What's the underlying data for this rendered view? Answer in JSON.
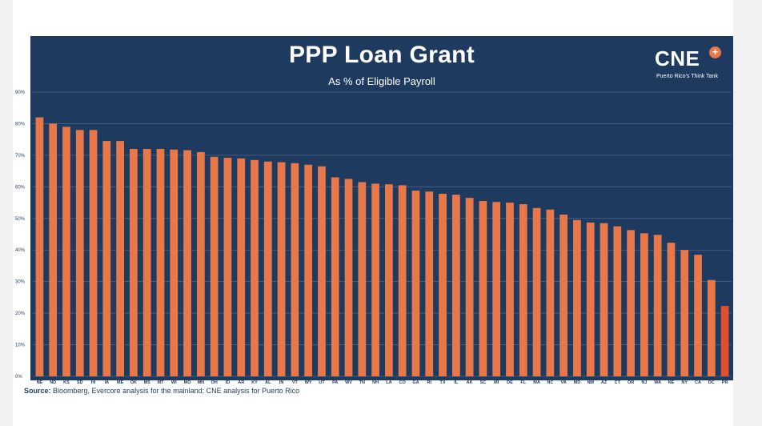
{
  "header": {
    "logo_text": "CNE",
    "logo_plus": "+",
    "logo_tagline": "Puerto Rico's Think Tank"
  },
  "footer": {
    "source_label": "Source:",
    "source_text": "Bloomberg, Evercore analysis for the mainland; CNE analysis for Puerto Rico"
  },
  "colors": {
    "background": "#1f3a5f",
    "bar": "#e8784a",
    "bar_highlight": "#e0502d",
    "grid": "#4d6585"
  },
  "chart_data": {
    "type": "bar",
    "title": "PPP Loan Grant",
    "subtitle": "As % of Eligible Payroll",
    "xlabel": "",
    "ylabel": "",
    "ylim": [
      0,
      90
    ],
    "yticks": [
      "0%",
      "10%",
      "20%",
      "30%",
      "40%",
      "50%",
      "60%",
      "70%",
      "80%",
      "90%"
    ],
    "grid": true,
    "categories": [
      "NE",
      "ND",
      "KS",
      "SD",
      "HI",
      "IA",
      "ME",
      "OK",
      "MS",
      "MT",
      "WI",
      "MO",
      "MN",
      "OH",
      "ID",
      "AR",
      "KY",
      "AL",
      "IN",
      "VT",
      "WY",
      "UT",
      "PA",
      "WV",
      "TN",
      "NH",
      "LA",
      "CO",
      "GA",
      "RI",
      "TX",
      "IL",
      "AK",
      "SC",
      "MI",
      "DE",
      "FL",
      "MA",
      "NC",
      "VA",
      "MD",
      "NM",
      "AZ",
      "CT",
      "OR",
      "NJ",
      "WA",
      "NE",
      "NY",
      "CA",
      "DC",
      "PR"
    ],
    "values": [
      82,
      80,
      79,
      78,
      78,
      74.5,
      74.5,
      72,
      72,
      72,
      71.8,
      71.6,
      71,
      69.5,
      69.2,
      69,
      68.5,
      68,
      67.8,
      67.5,
      67,
      66.5,
      63,
      62.5,
      61.5,
      61,
      60.8,
      60.5,
      58.8,
      58.5,
      57.8,
      57.5,
      56.5,
      55.5,
      55.2,
      55,
      54.5,
      53.3,
      52.8,
      51.2,
      49.5,
      48.7,
      48.5,
      47.5,
      46.3,
      45.3,
      44.8,
      42.3,
      40,
      38.5,
      30.5,
      22.3
    ],
    "highlight": "PR"
  }
}
